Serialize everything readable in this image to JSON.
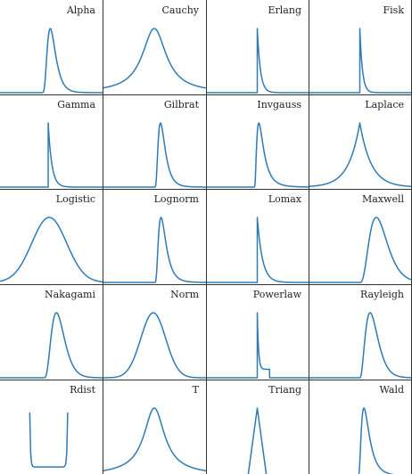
{
  "colors": {
    "line": "#2e7bb6",
    "axes": "#333333",
    "background": "#ffffff"
  },
  "chart_data": [
    {
      "title": "Alpha",
      "type": "line",
      "grid": false
    },
    {
      "title": "Cauchy",
      "type": "line",
      "grid": false
    },
    {
      "title": "Erlang",
      "type": "line",
      "grid": false
    },
    {
      "title": "Fisk",
      "type": "line",
      "grid": false
    },
    {
      "title": "Gamma",
      "type": "line",
      "grid": false
    },
    {
      "title": "Gilbrat",
      "type": "line",
      "grid": false
    },
    {
      "title": "Invgauss",
      "type": "line",
      "grid": false
    },
    {
      "title": "Laplace",
      "type": "line",
      "grid": false
    },
    {
      "title": "Logistic",
      "type": "line",
      "grid": false
    },
    {
      "title": "Lognorm",
      "type": "line",
      "grid": false
    },
    {
      "title": "Lomax",
      "type": "line",
      "grid": false
    },
    {
      "title": "Maxwell",
      "type": "line",
      "grid": false
    },
    {
      "title": "Nakagami",
      "type": "line",
      "grid": false
    },
    {
      "title": "Norm",
      "type": "line",
      "grid": false
    },
    {
      "title": "Powerlaw",
      "type": "line",
      "grid": false
    },
    {
      "title": "Rayleigh",
      "type": "line",
      "grid": false
    },
    {
      "title": "Rdist",
      "type": "line",
      "grid": false
    },
    {
      "title": "T",
      "type": "line",
      "grid": false
    },
    {
      "title": "Triang",
      "type": "line",
      "grid": false
    },
    {
      "title": "Wald",
      "type": "line",
      "grid": false
    }
  ]
}
